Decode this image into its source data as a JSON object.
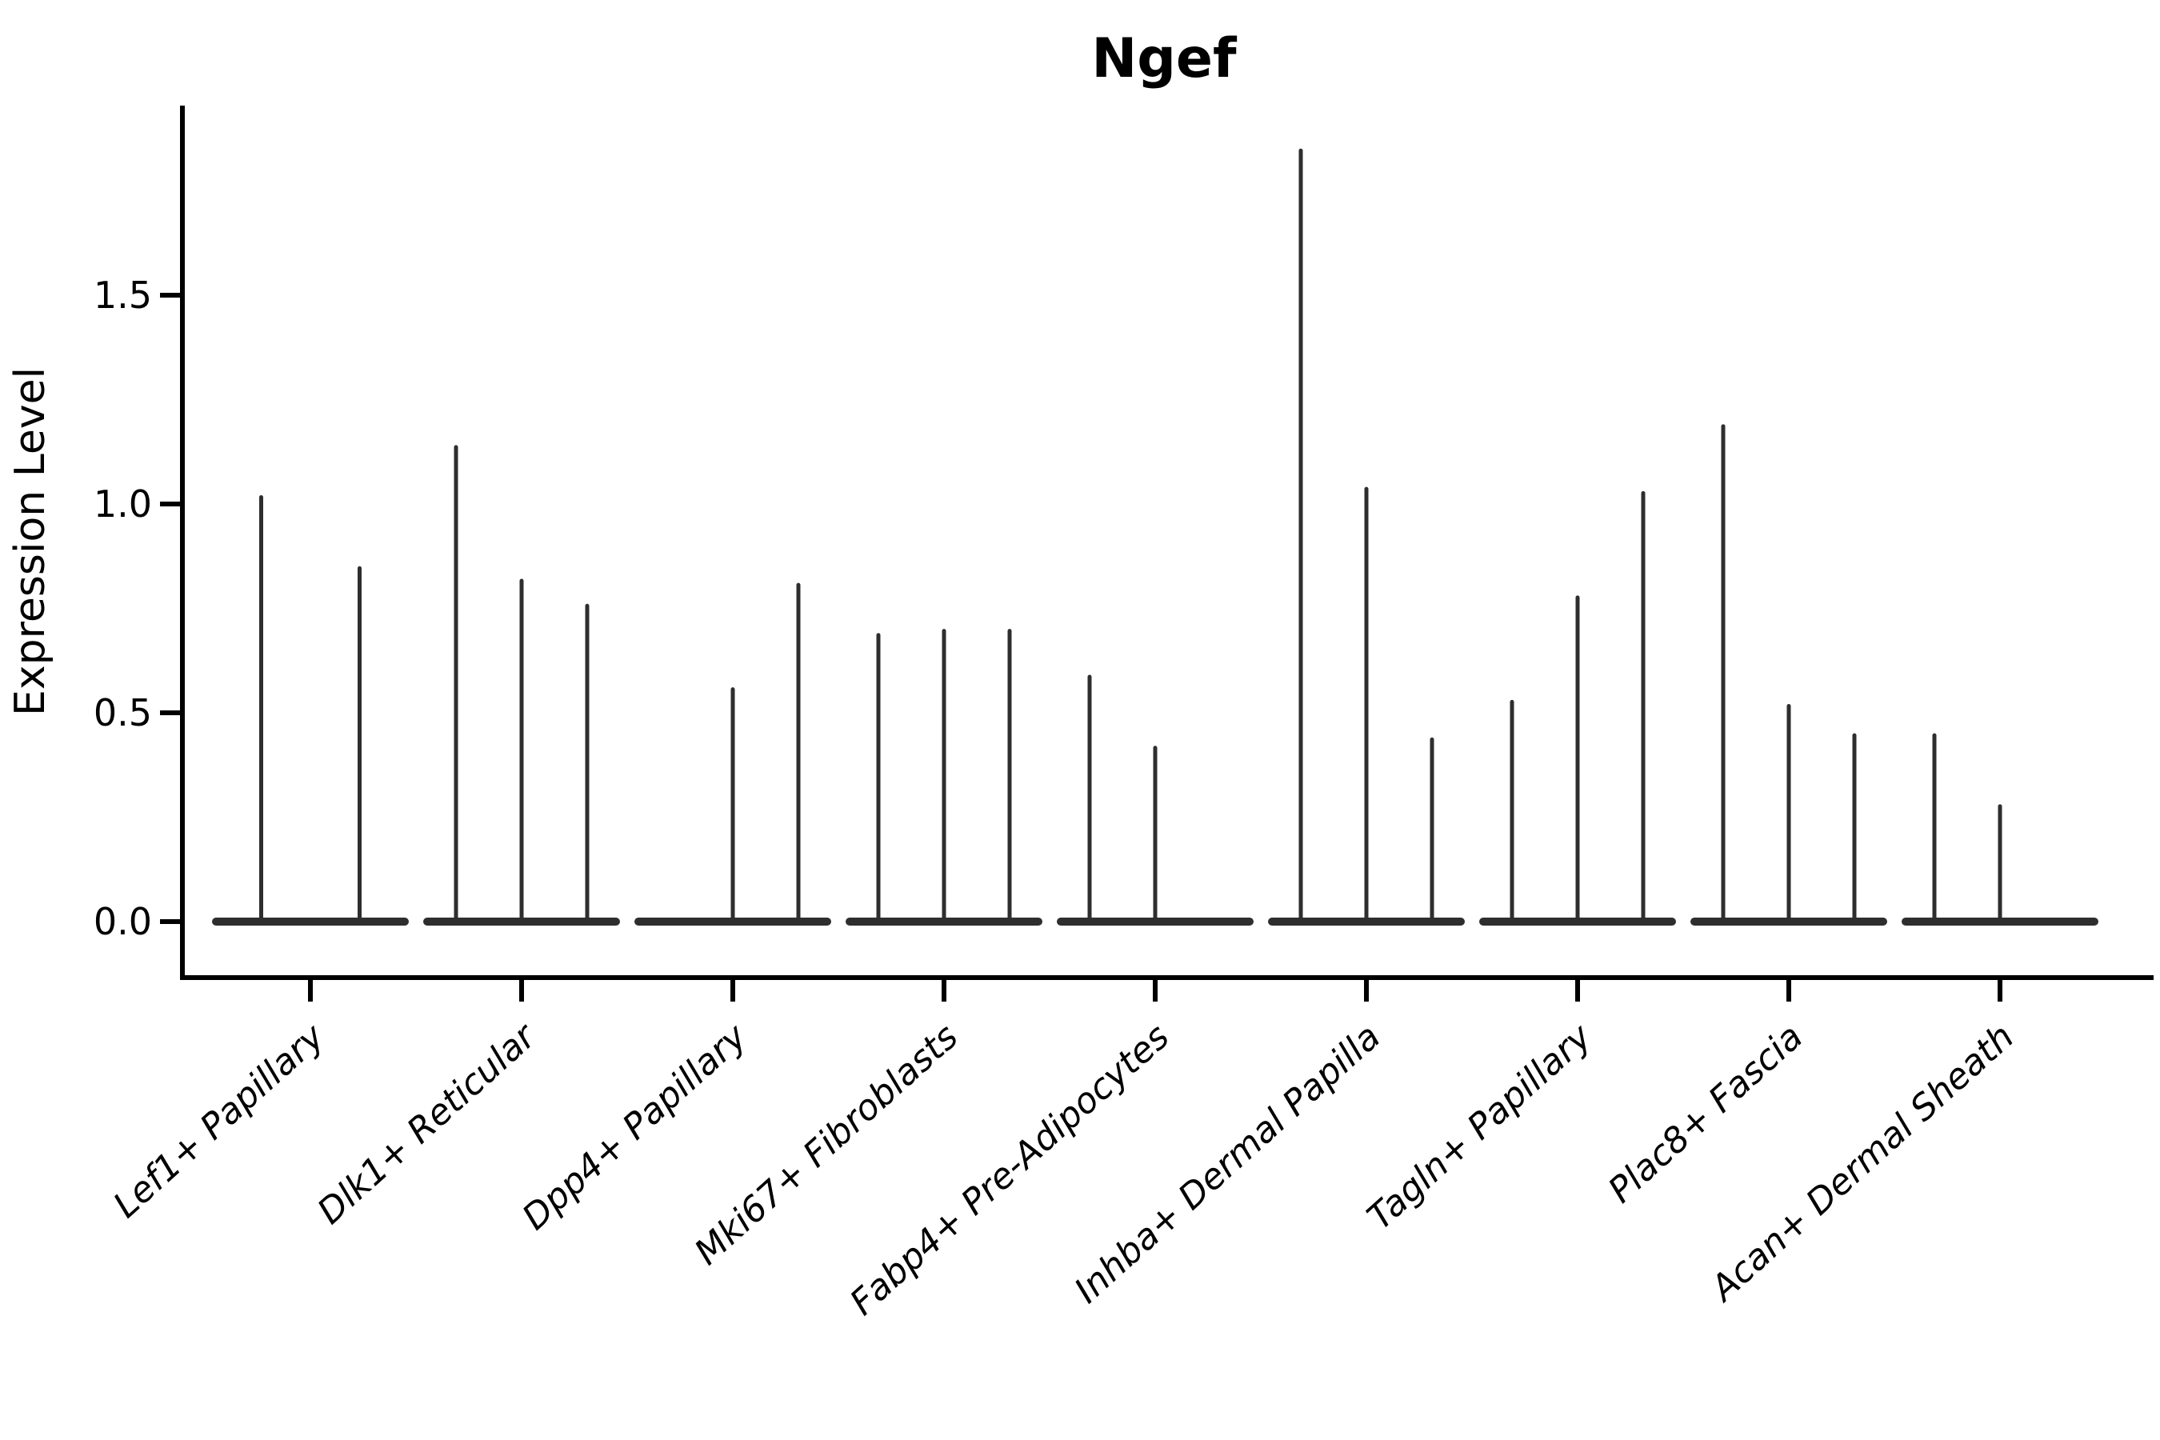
{
  "chart_data": {
    "type": "violin",
    "title": "Ngef",
    "ylabel": "Expression Level",
    "xlabel": "",
    "ylim": [
      0,
      1.95
    ],
    "ytick_values": [
      0,
      0.5,
      1.0,
      1.5
    ],
    "ytick_labels": [
      "0.0",
      "0.5",
      "1.0",
      "1.5"
    ],
    "grid": false,
    "legend": "none",
    "categories": [
      "Lef1+ Papillary",
      "Dlk1+ Reticular",
      "Dpp4+ Papillary",
      "Mki67+ Fibroblasts",
      "Fabp4+ Pre-Adipocytes",
      "Inhba+ Dermal Papilla",
      "Tagln+ Papillary",
      "Plac8+ Fascia",
      "Acan+ Dermal Sheath"
    ],
    "violins_max_expression": [
      [
        1.02,
        0.85
      ],
      [
        1.14,
        0.82,
        0.76
      ],
      [
        0.0,
        0.56,
        0.81
      ],
      [
        0.69,
        0.7,
        0.7
      ],
      [
        0.59,
        0.42,
        0.0
      ],
      [
        1.85,
        1.04,
        0.44
      ],
      [
        0.53,
        0.78,
        1.03
      ],
      [
        1.19,
        0.52,
        0.45
      ],
      [
        0.45,
        0.28,
        0.0
      ]
    ],
    "colors": {
      "line": "#2e2e2e",
      "axis": "#000000",
      "text": "#000000",
      "background": "#ffffff"
    }
  }
}
